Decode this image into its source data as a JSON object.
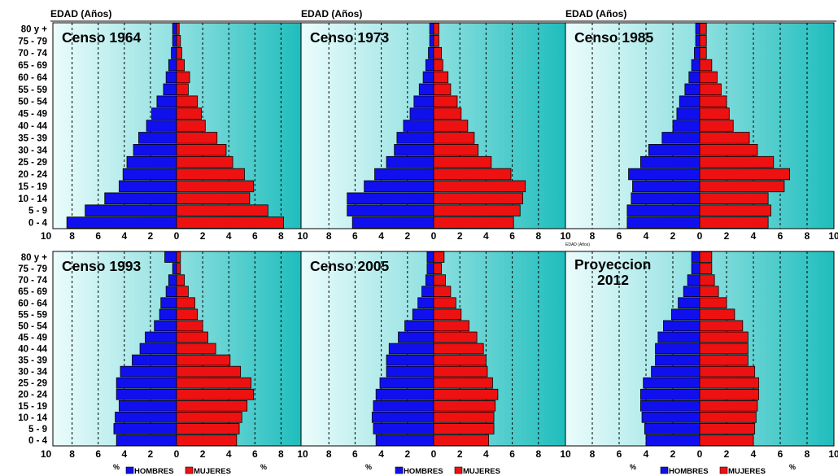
{
  "colors": {
    "male": "#1010ee",
    "female": "#ee1111",
    "panel_light": "#e6fafa",
    "panel_dark": "#20c2c2",
    "gridline": "#000000"
  },
  "axis_header": "EDAD (Años)",
  "axis_header_small": "EDAD (Años)",
  "percent_label": "%",
  "age_labels": [
    "80 y +",
    "75 - 79",
    "70 - 74",
    "65 - 69",
    "60 - 64",
    "55 - 59",
    "50 - 54",
    "45 - 49",
    "40 - 44",
    "35 - 39",
    "30 - 34",
    "25 - 29",
    "20 - 24",
    "15 - 19",
    "10 - 14",
    "5 - 9",
    "0 - 4"
  ],
  "legend": [
    {
      "label": "HOMBRES",
      "color": "#1010ee"
    },
    {
      "label": "MUJERES",
      "color": "#ee1111"
    }
  ],
  "chart_data": [
    {
      "type": "bar",
      "title": "Censo 1964",
      "x_ticks": [
        "10",
        "8",
        "6",
        "4",
        "2",
        "0",
        "2",
        "4",
        "6",
        "8"
      ],
      "xlim": [
        -10,
        9
      ],
      "categories": [
        "80 y +",
        "75 - 79",
        "70 - 74",
        "65 - 69",
        "60 - 64",
        "55 - 59",
        "50 - 54",
        "45 - 49",
        "40 - 44",
        "35 - 39",
        "30 - 34",
        "25 - 29",
        "20 - 24",
        "15 - 19",
        "10 - 14",
        "5 - 9",
        "0 - 4"
      ],
      "series": [
        {
          "name": "HOMBRES",
          "values": [
            0.3,
            0.3,
            0.4,
            0.6,
            0.8,
            1.0,
            1.5,
            1.9,
            2.3,
            2.9,
            3.3,
            3.8,
            4.1,
            4.4,
            5.5,
            7.0,
            8.4
          ]
        },
        {
          "name": "MUJERES",
          "values": [
            0.2,
            0.3,
            0.4,
            0.6,
            1.0,
            0.9,
            1.6,
            1.9,
            2.2,
            3.1,
            3.8,
            4.3,
            5.2,
            5.9,
            5.6,
            7.0,
            8.2
          ]
        }
      ]
    },
    {
      "type": "bar",
      "title": "Censo 1973",
      "x_ticks": [
        "10",
        "8",
        "6",
        "4",
        "2",
        "0",
        "2",
        "4",
        "6",
        "8"
      ],
      "xlim": [
        -10,
        9
      ],
      "categories": [
        "80 y +",
        "75 - 79",
        "70 - 74",
        "65 - 69",
        "60 - 64",
        "55 - 59",
        "50 - 54",
        "45 - 49",
        "40 - 44",
        "35 - 39",
        "30 - 34",
        "25 - 29",
        "20 - 24",
        "15 - 19",
        "10 - 14",
        "5 - 9",
        "0 - 4"
      ],
      "series": [
        {
          "name": "HOMBRES",
          "values": [
            0.3,
            0.3,
            0.4,
            0.6,
            0.8,
            1.1,
            1.5,
            1.8,
            2.3,
            2.8,
            3.0,
            3.6,
            4.5,
            5.3,
            6.6,
            6.6,
            6.2
          ]
        },
        {
          "name": "MUJERES",
          "values": [
            0.4,
            0.4,
            0.6,
            0.7,
            1.1,
            1.3,
            1.8,
            2.1,
            2.6,
            3.1,
            3.4,
            4.4,
            5.9,
            7.0,
            6.8,
            6.6,
            6.1
          ]
        }
      ]
    },
    {
      "type": "bar",
      "title": "Censo 1985",
      "x_ticks": [
        "10",
        "8",
        "6",
        "4",
        "2",
        "0",
        "2",
        "4",
        "6",
        "8",
        "10"
      ],
      "xlim": [
        -10,
        10
      ],
      "categories": [
        "80 y +",
        "75 - 79",
        "70 - 74",
        "65 - 69",
        "60 - 64",
        "55 - 59",
        "50 - 54",
        "45 - 49",
        "40 - 44",
        "35 - 39",
        "30 - 34",
        "25 - 29",
        "20 - 24",
        "15 - 19",
        "10 - 14",
        "5 - 9",
        "0 - 4"
      ],
      "series": [
        {
          "name": "HOMBRES",
          "values": [
            0.3,
            0.3,
            0.4,
            0.6,
            0.8,
            1.1,
            1.5,
            1.7,
            2.0,
            2.8,
            3.8,
            4.4,
            5.3,
            5.0,
            5.1,
            5.4,
            5.4
          ]
        },
        {
          "name": "MUJERES",
          "values": [
            0.5,
            0.5,
            0.5,
            0.9,
            1.3,
            1.6,
            2.0,
            2.2,
            2.5,
            3.7,
            4.3,
            5.5,
            6.7,
            6.3,
            5.1,
            5.3,
            5.1
          ]
        }
      ]
    },
    {
      "type": "bar",
      "title": "Censo 1993",
      "x_ticks": [
        "10",
        "8",
        "6",
        "4",
        "2",
        "0",
        "2",
        "4",
        "6",
        "8"
      ],
      "xlim": [
        -10,
        9
      ],
      "categories": [
        "80 y +",
        "75 - 79",
        "70 - 74",
        "65 - 69",
        "60 - 64",
        "55 - 59",
        "50 - 54",
        "45 - 49",
        "40 - 44",
        "35 - 39",
        "30 - 34",
        "25 - 29",
        "20 - 24",
        "15 - 19",
        "10 - 14",
        "5 - 9",
        "0 - 4"
      ],
      "series": [
        {
          "name": "HOMBRES",
          "values": [
            0.9,
            0.3,
            0.6,
            0.8,
            1.2,
            1.3,
            1.7,
            2.4,
            2.8,
            3.4,
            4.3,
            4.6,
            4.6,
            4.4,
            4.7,
            4.8,
            4.6
          ]
        },
        {
          "name": "MUJERES",
          "values": [
            0.3,
            0.3,
            0.6,
            0.9,
            1.4,
            1.6,
            2.0,
            2.4,
            3.0,
            4.1,
            4.9,
            5.7,
            5.9,
            5.4,
            5.0,
            4.8,
            4.6
          ]
        }
      ]
    },
    {
      "type": "bar",
      "title": "Censo 2005",
      "x_ticks": [
        "10",
        "8",
        "6",
        "4",
        "2",
        "0",
        "2",
        "4",
        "6",
        "8"
      ],
      "xlim": [
        -10,
        9
      ],
      "categories": [
        "80 y +",
        "75 - 79",
        "70 - 74",
        "65 - 69",
        "60 - 64",
        "55 - 59",
        "50 - 54",
        "45 - 49",
        "40 - 44",
        "35 - 39",
        "30 - 34",
        "25 - 29",
        "20 - 24",
        "15 - 19",
        "10 - 14",
        "5 - 9",
        "0 - 4"
      ],
      "series": [
        {
          "name": "HOMBRES",
          "values": [
            0.5,
            0.5,
            0.6,
            0.9,
            1.2,
            1.6,
            2.2,
            2.7,
            3.4,
            3.6,
            3.6,
            4.1,
            4.4,
            4.6,
            4.7,
            4.6,
            4.4
          ]
        },
        {
          "name": "MUJERES",
          "values": [
            0.8,
            0.6,
            0.9,
            1.3,
            1.7,
            2.1,
            2.7,
            3.3,
            3.8,
            4.0,
            4.1,
            4.5,
            4.9,
            4.7,
            4.6,
            4.6,
            4.2
          ]
        }
      ]
    },
    {
      "type": "bar",
      "title": "Proyeccion 2012",
      "x_ticks": [
        "10",
        "8",
        "6",
        "4",
        "2",
        "0",
        "2",
        "4",
        "6",
        "8",
        "10"
      ],
      "xlim": [
        -10,
        10
      ],
      "categories": [
        "80 y +",
        "75 - 79",
        "70 - 74",
        "65 - 69",
        "60 - 64",
        "55 - 59",
        "50 - 54",
        "45 - 49",
        "40 - 44",
        "35 - 39",
        "30 - 34",
        "25 - 29",
        "20 - 24",
        "15 - 19",
        "10 - 14",
        "5 - 9",
        "0 - 4"
      ],
      "series": [
        {
          "name": "HOMBRES",
          "values": [
            0.6,
            0.6,
            0.9,
            1.2,
            1.6,
            2.1,
            2.7,
            3.1,
            3.3,
            3.3,
            3.6,
            4.2,
            4.4,
            4.4,
            4.3,
            4.1,
            4.0
          ]
        },
        {
          "name": "MUJERES",
          "values": [
            0.9,
            0.9,
            1.1,
            1.4,
            2.0,
            2.6,
            3.2,
            3.6,
            3.6,
            3.6,
            4.1,
            4.4,
            4.4,
            4.3,
            4.2,
            4.1,
            4.0
          ]
        }
      ]
    }
  ]
}
